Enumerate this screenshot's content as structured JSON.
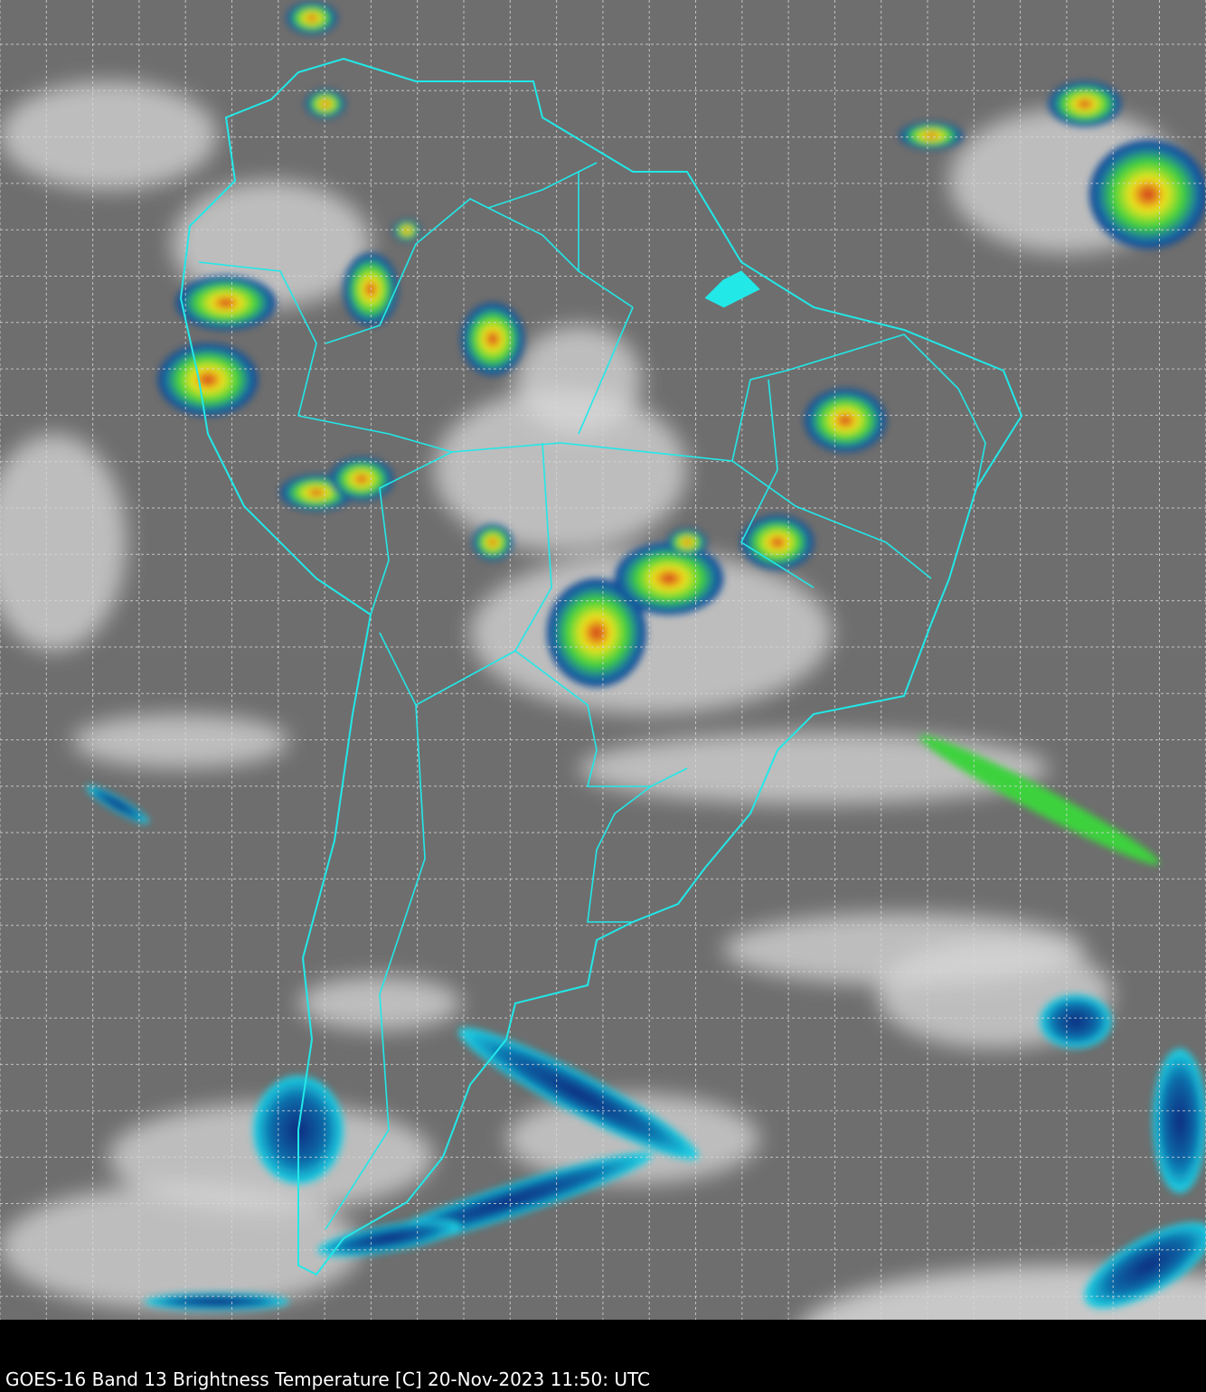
{
  "caption": "GOES-16 Band 13  Brightness Temperature [C] 20-Nov-2023 11:50: UTC",
  "colors": {
    "background_gray": "#6e6e6e",
    "border_lines": "#22e8e8",
    "grid_lines": "#d8d8d8",
    "cold_cloud_blue": "#0a3c8c",
    "convective_green": "#3cd23c",
    "convective_yellow": "#f0e61e",
    "convective_red": "#d2281e"
  }
}
